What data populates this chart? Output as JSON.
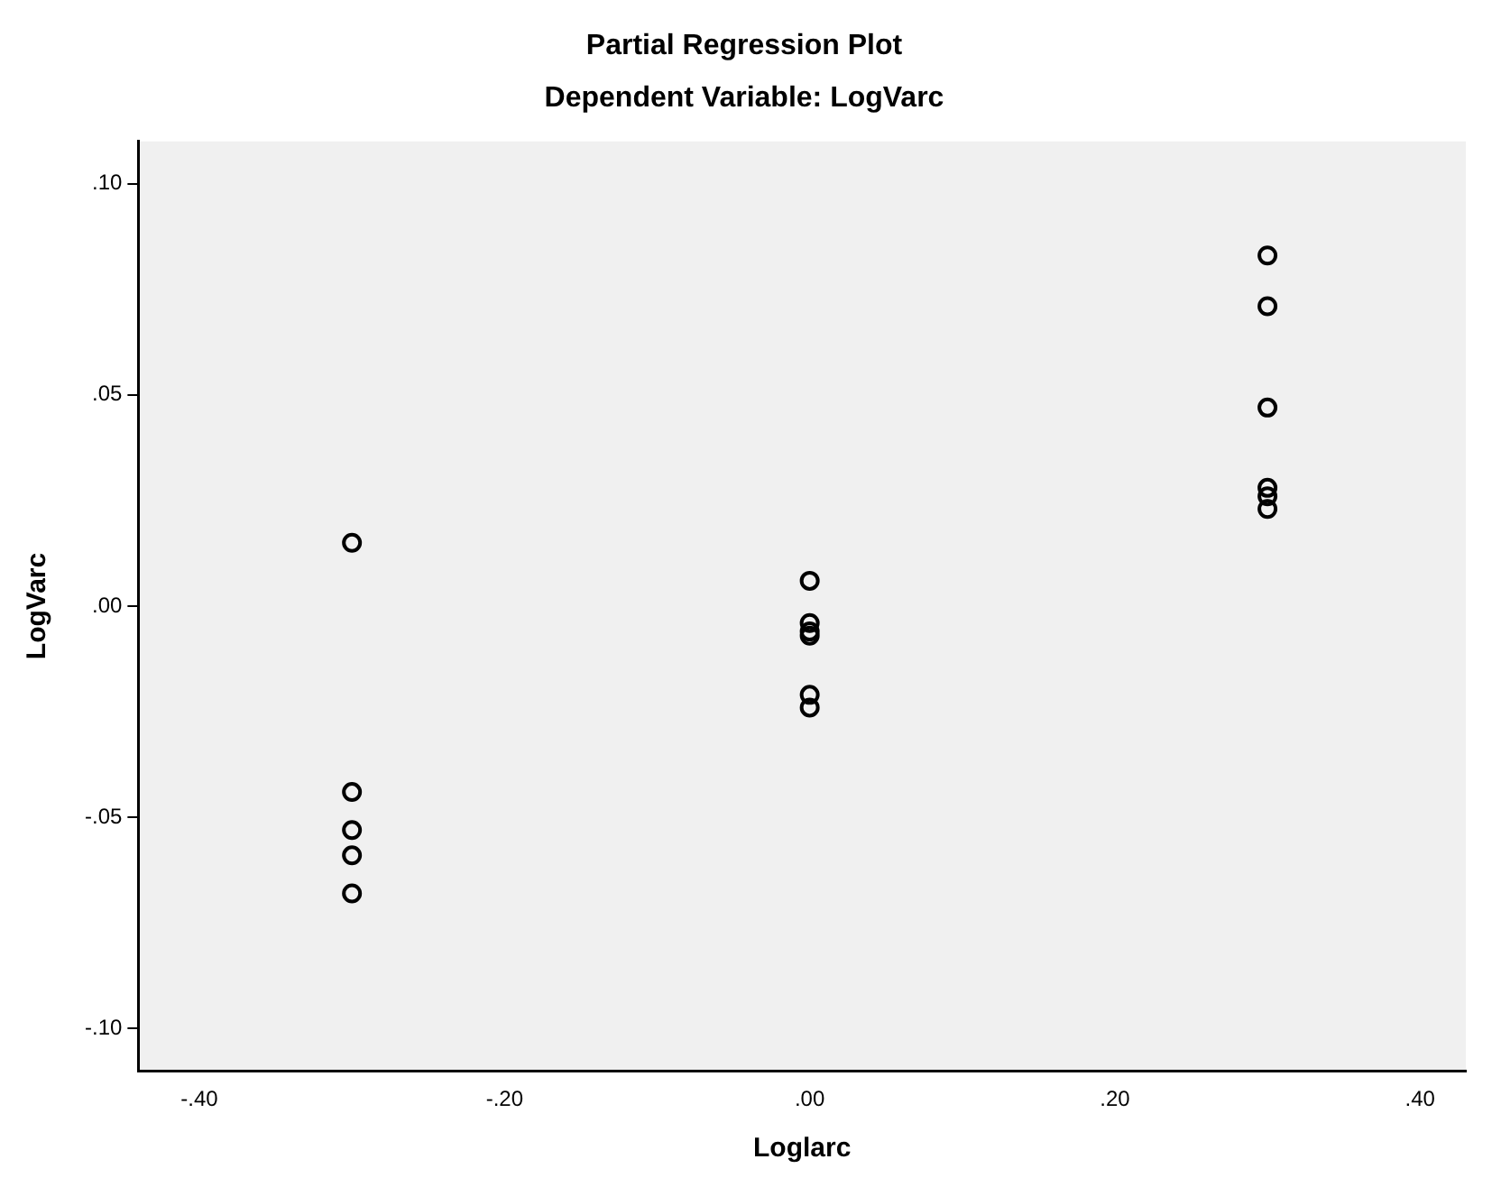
{
  "chart_data": {
    "type": "scatter",
    "title": "Partial Regression Plot",
    "subtitle": "Dependent Variable: LogVarc",
    "xlabel": "Loglarc",
    "ylabel": "LogVarc",
    "series": [
      {
        "color": "#000000",
        "x": [
          -0.3,
          -0.3,
          -0.3,
          -0.3,
          -0.3,
          0,
          0,
          0,
          0,
          0,
          0,
          0.3,
          0.3,
          0.3,
          0.3,
          0.3,
          0.3
        ],
        "values": [
          0.015,
          -0.044,
          -0.053,
          -0.059,
          -0.068,
          0.006,
          -0.004,
          -0.006,
          -0.007,
          -0.021,
          -0.024,
          0.083,
          0.071,
          0.047,
          0.028,
          0.026,
          0.023
        ]
      }
    ],
    "xlim": [
      -0.44,
      0.43
    ],
    "ylim": [
      -0.11,
      0.11
    ],
    "xticks": [
      {
        "value": -0.4,
        "label": "-.40"
      },
      {
        "value": -0.2,
        "label": "-.20"
      },
      {
        "value": 0,
        "label": ".00"
      },
      {
        "value": 0.2,
        "label": ".20"
      },
      {
        "value": 0.4,
        "label": ".40"
      }
    ],
    "yticks": [
      {
        "value": -0.1,
        "label": "-.10"
      },
      {
        "value": -0.05,
        "label": "-.05"
      },
      {
        "value": 0,
        "label": ".00"
      },
      {
        "value": 0.05,
        "label": ".05"
      },
      {
        "value": 0.1,
        "label": ".10"
      }
    ],
    "grid": false,
    "legend": false,
    "marker": "circle"
  }
}
